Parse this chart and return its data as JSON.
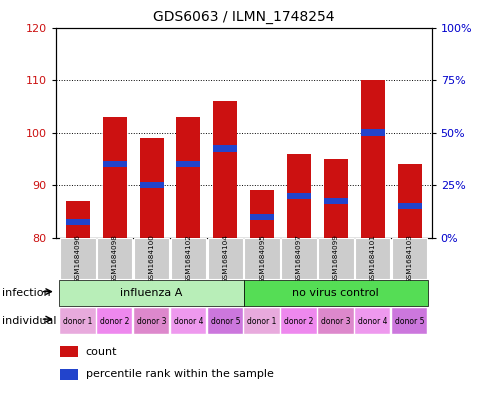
{
  "title": "GDS6063 / ILMN_1748254",
  "samples": [
    "GSM1684096",
    "GSM1684098",
    "GSM1684100",
    "GSM1684102",
    "GSM1684104",
    "GSM1684095",
    "GSM1684097",
    "GSM1684099",
    "GSM1684101",
    "GSM1684103"
  ],
  "bar_bottom": 80,
  "bar_tops": [
    87,
    103,
    99,
    103,
    106,
    89,
    96,
    95,
    110,
    94
  ],
  "blue_positions": [
    83,
    94,
    90,
    94,
    97,
    84,
    88,
    87,
    100,
    86
  ],
  "ylim": [
    80,
    120
  ],
  "yticks_left": [
    80,
    90,
    100,
    110,
    120
  ],
  "bar_color": "#cc1111",
  "blue_color": "#2244cc",
  "grid_color": "#000000",
  "inf_colors": [
    "#b8eeb8",
    "#55dd55"
  ],
  "inf_labels": [
    "influenza A",
    "no virus control"
  ],
  "individual_labels": [
    "donor 1",
    "donor 2",
    "donor 3",
    "donor 4",
    "donor 5",
    "donor 1",
    "donor 2",
    "donor 3",
    "donor 4",
    "donor 5"
  ],
  "ind_colors": [
    "#e8aadd",
    "#ee88ee",
    "#dd88cc",
    "#ee99ee",
    "#cc77dd",
    "#e8aadd",
    "#ee88ee",
    "#dd88cc",
    "#ee99ee",
    "#cc77dd"
  ],
  "bg_color": "#ffffff",
  "label_infection": "infection",
  "label_individual": "individual",
  "legend_count": "count",
  "legend_percentile": "percentile rank within the sample",
  "left_tick_color": "#cc1111",
  "right_tick_color": "#0000cc"
}
